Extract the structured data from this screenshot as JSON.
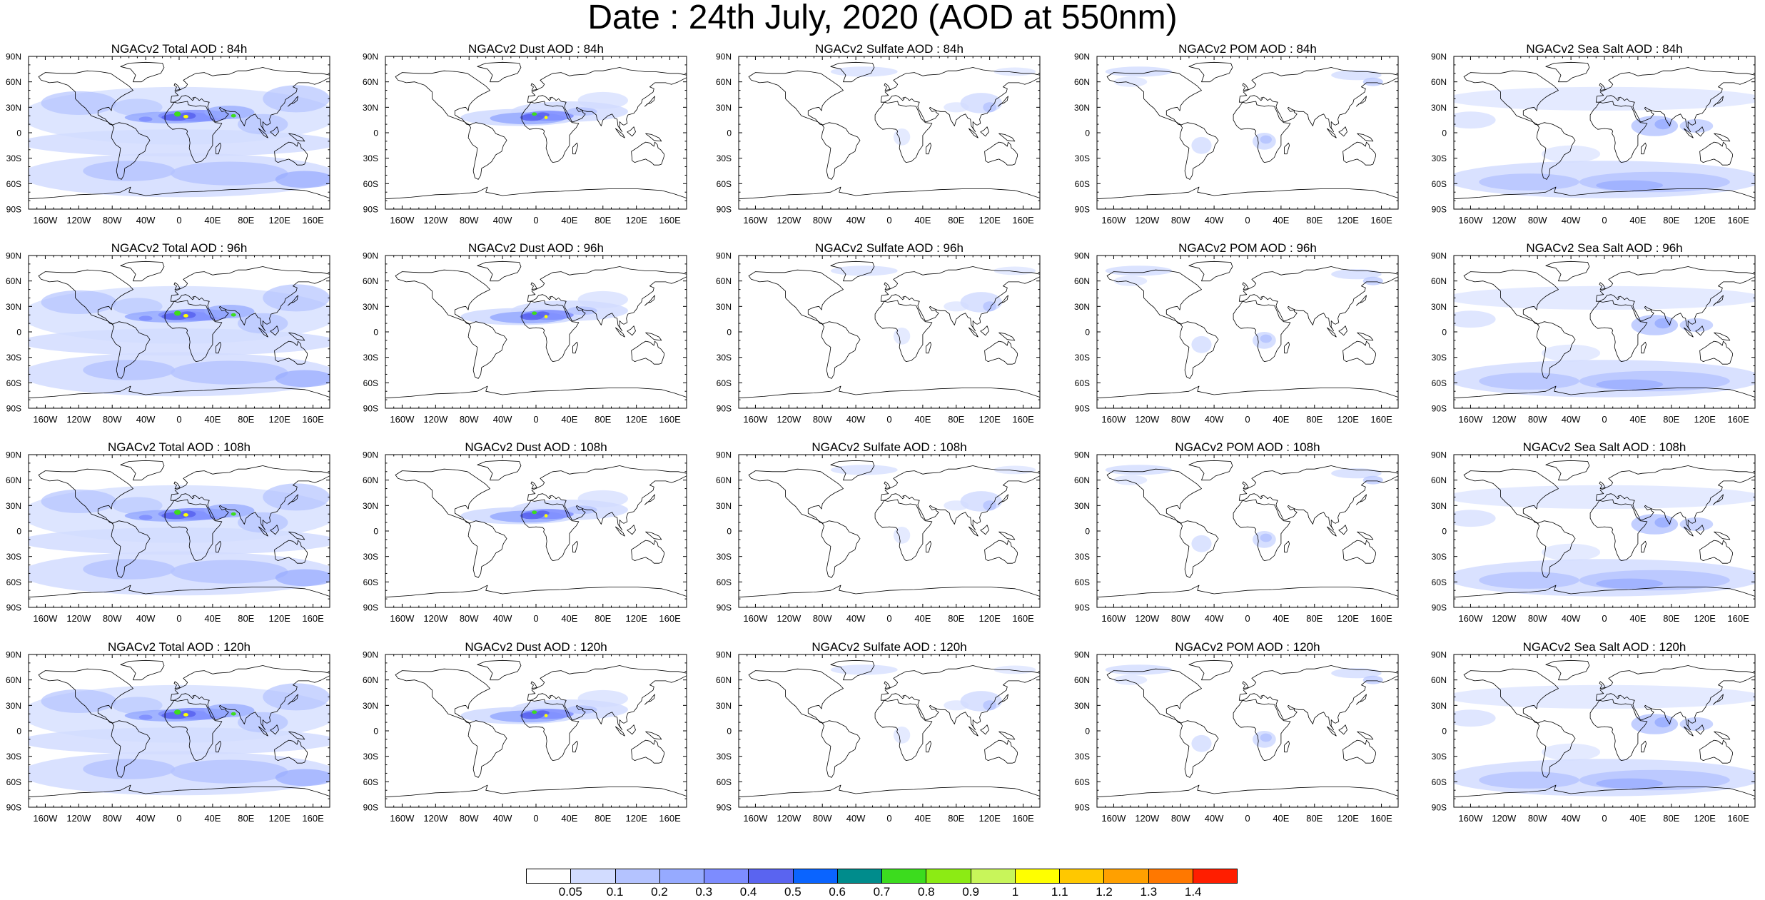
{
  "title": "Date : 24th July, 2020 (AOD at 550nm)",
  "lat_labels": [
    "90N",
    "60N",
    "30N",
    "0",
    "30S",
    "60S",
    "90S"
  ],
  "lon_labels": [
    "160W",
    "120W",
    "80W",
    "40W",
    "0",
    "40E",
    "80E",
    "120E",
    "160E"
  ],
  "panel_titles": [
    [
      "NGACv2 Total AOD : 84h",
      "NGACv2 Dust AOD : 84h",
      "NGACv2 Sulfate AOD : 84h",
      "NGACv2 POM AOD : 84h",
      "NGACv2 Sea Salt AOD : 84h"
    ],
    [
      "NGACv2 Total AOD : 96h",
      "NGACv2 Dust AOD : 96h",
      "NGACv2 Sulfate AOD : 96h",
      "NGACv2 POM AOD : 96h",
      "NGACv2 Sea Salt AOD : 96h"
    ],
    [
      "NGACv2 Total AOD : 108h",
      "NGACv2 Dust AOD : 108h",
      "NGACv2 Sulfate AOD : 108h",
      "NGACv2 POM AOD : 108h",
      "NGACv2 Sea Salt AOD : 108h"
    ],
    [
      "NGACv2 Total AOD : 120h",
      "NGACv2 Dust AOD : 120h",
      "NGACv2 Sulfate AOD : 120h",
      "NGACv2 POM AOD : 120h",
      "NGACv2 Sea Salt  AOD : 120h"
    ]
  ],
  "colorbar": {
    "labels": [
      "0.05",
      "0.1",
      "0.2",
      "0.3",
      "0.4",
      "0.5",
      "0.6",
      "0.7",
      "0.8",
      "0.9",
      "1",
      "1.1",
      "1.2",
      "1.3",
      "1.4"
    ],
    "colors": [
      "#ffffff",
      "#d2dcff",
      "#b4c3ff",
      "#96aaff",
      "#7d8cff",
      "#5a64f0",
      "#0a64ff",
      "#008c8c",
      "#3cdc1e",
      "#8ceb14",
      "#c8f55a",
      "#ffff00",
      "#ffc800",
      "#ffa000",
      "#ff7800",
      "#ff1e00"
    ]
  },
  "scale_colors": {
    "light": "#d2dcff",
    "mid": "#b4c3ff",
    "blue": "#96aaff",
    "deep": "#7d8cff",
    "dark": "#5a64f0",
    "green": "#3cdc1e",
    "yellow": "#ffff00"
  }
}
